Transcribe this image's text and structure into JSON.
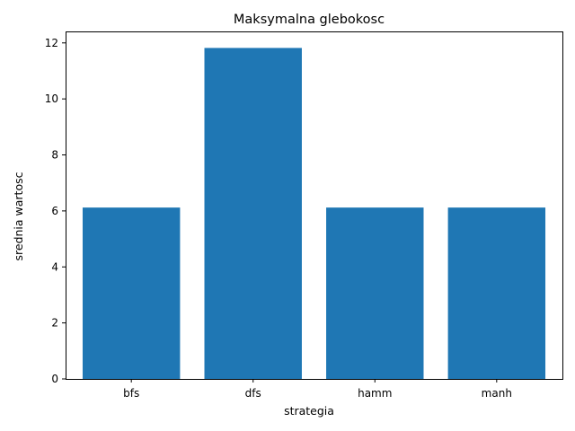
{
  "chart_data": {
    "type": "bar",
    "title": "Maksymalna glebokosc",
    "xlabel": "strategia",
    "ylabel": "srednia wartosc",
    "categories": [
      "bfs",
      "dfs",
      "hamm",
      "manh"
    ],
    "values": [
      6.12,
      11.82,
      6.12,
      6.12
    ],
    "ylim": [
      0,
      12.41
    ],
    "yticks": [
      0,
      2,
      4,
      6,
      8,
      10,
      12
    ],
    "grid": false,
    "bar_color": "#1f77b4"
  }
}
